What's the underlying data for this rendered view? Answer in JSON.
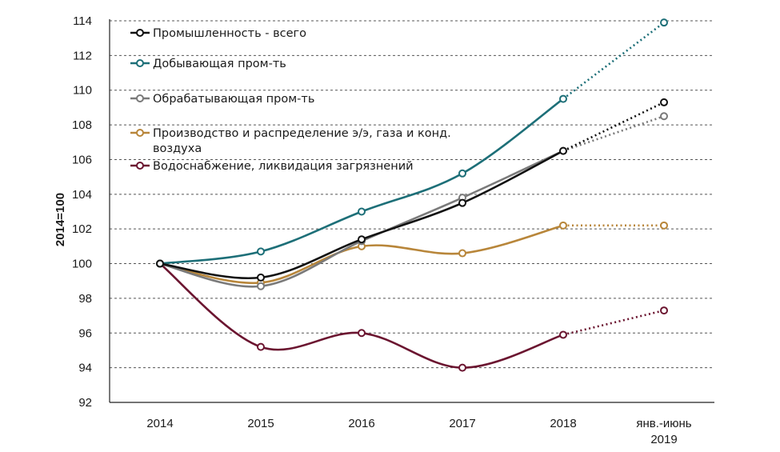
{
  "chart_data": {
    "type": "line",
    "ylabel": "2014=100",
    "ylim": [
      92,
      114
    ],
    "yticks": [
      "92",
      "94",
      "96",
      "98",
      "100",
      "102",
      "104",
      "106",
      "108",
      "110",
      "112",
      "114"
    ],
    "categories": [
      "2014",
      "2015",
      "2016",
      "2017",
      "2018",
      "янв.-июнь 2019"
    ],
    "category_labels": [
      [
        "2014"
      ],
      [
        "2015"
      ],
      [
        "2016"
      ],
      [
        "2017"
      ],
      [
        "2018"
      ],
      [
        "янв.-июнь",
        "2019"
      ]
    ],
    "grid": true,
    "legend_position": "top-left",
    "last_segment_style": "dotted",
    "series": [
      {
        "name": "Промышленность  - всего",
        "color": "#111111",
        "values": [
          100.0,
          99.2,
          101.4,
          103.5,
          106.5,
          109.3
        ]
      },
      {
        "name": "Добывающая пром-ть",
        "color": "#1d6f78",
        "values": [
          100.0,
          100.7,
          103.0,
          105.2,
          109.5,
          113.9
        ]
      },
      {
        "name": "Обрабатывающая пром-ть",
        "color": "#7a7a7a",
        "values": [
          100.0,
          98.7,
          101.3,
          103.8,
          106.5,
          108.5
        ]
      },
      {
        "name": "Производство и распределение э/э, газа и конд. воздуха",
        "color": "#b8863a",
        "values": [
          100.0,
          98.9,
          101.0,
          100.6,
          102.2,
          102.2
        ],
        "legend_lines": [
          "Производство и распределение  э/э, газа и конд.",
          "воздуха"
        ]
      },
      {
        "name": "Водоснабжение,  ликвидация загрязнений",
        "color": "#6b1530",
        "values": [
          100.0,
          95.2,
          96.0,
          94.0,
          95.9,
          97.3
        ]
      }
    ]
  }
}
